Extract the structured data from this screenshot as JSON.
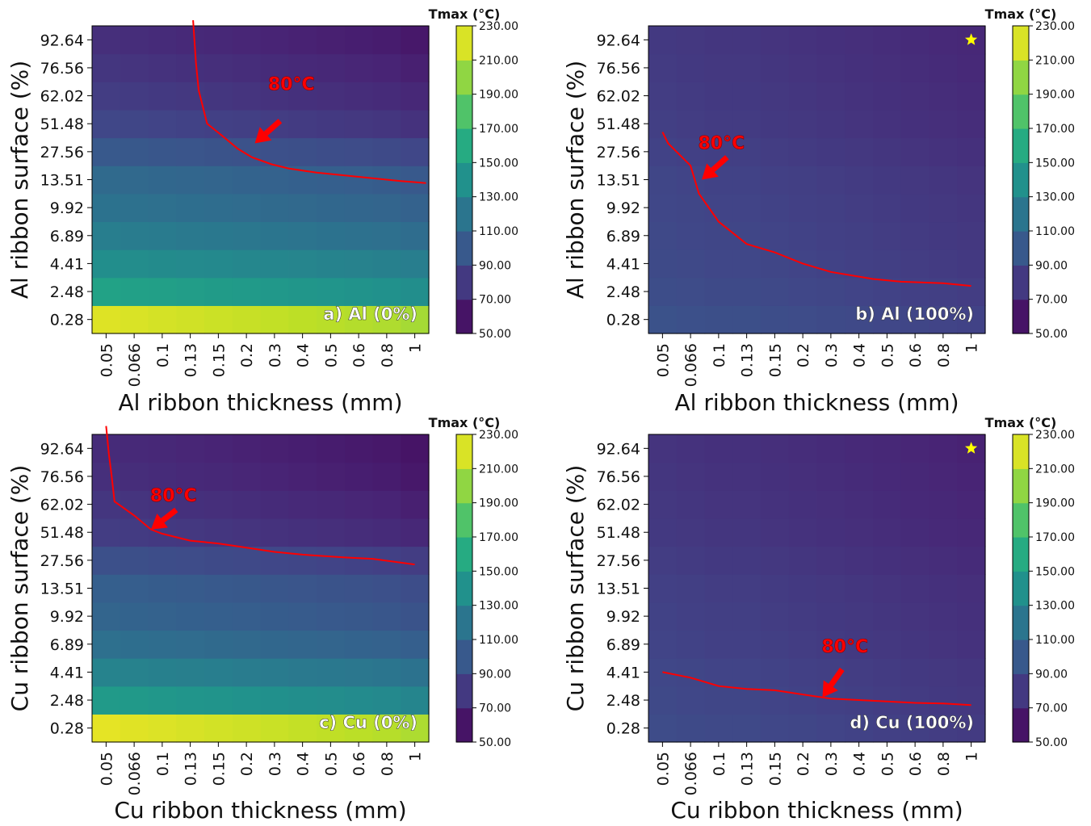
{
  "chart_data": [
    {
      "type": "heatmap",
      "panel_label": "a) Al (0%)",
      "xlabel": "Al ribbon thickness (mm)",
      "ylabel": "Al ribbon surface (%)",
      "x": [
        "0.05",
        "0.066",
        "0.1",
        "0.13",
        "0.15",
        "0.2",
        "0.3",
        "0.4",
        "0.5",
        "0.6",
        "0.8",
        "1"
      ],
      "y": [
        "0.28",
        "2.48",
        "4.41",
        "6.89",
        "9.92",
        "13.51",
        "27.56",
        "51.48",
        "62.02",
        "76.56",
        "92.64"
      ],
      "col_offsets": [
        4,
        3,
        2,
        1,
        0,
        -1,
        -2,
        -3,
        -4,
        -5,
        -6,
        -8
      ],
      "row_base": [
        216,
        148,
        134,
        122,
        114,
        108,
        96,
        84,
        78,
        74,
        70
      ],
      "contour_label": "80°C",
      "contour": [
        [
          3.1,
          10.7
        ],
        [
          3.2,
          9.2
        ],
        [
          3.3,
          8.2
        ],
        [
          3.6,
          7.0
        ],
        [
          4.1,
          6.6
        ],
        [
          4.7,
          6.1
        ],
        [
          5.2,
          5.8
        ],
        [
          5.9,
          5.55
        ],
        [
          6.5,
          5.4
        ],
        [
          7.5,
          5.25
        ],
        [
          8.5,
          5.15
        ],
        [
          9.5,
          5.05
        ],
        [
          10.5,
          4.95
        ],
        [
          11.4,
          4.88
        ]
      ],
      "arrow_label_at": [
        6.6,
        8.2
      ],
      "arrow_tail": [
        6.2,
        7.1
      ],
      "arrow_head": [
        5.3,
        6.3
      ],
      "clim": [
        50,
        230
      ],
      "colorbar_title": "Tmax (°C)",
      "colorbar_ticks": [
        "230.00",
        "210.00",
        "190.00",
        "170.00",
        "150.00",
        "130.00",
        "110.00",
        "90.00",
        "70.00",
        "50.00"
      ],
      "star": false
    },
    {
      "type": "heatmap",
      "panel_label": "b) Al (100%)",
      "xlabel": "Al ribbon thickness (mm)",
      "ylabel": "Al ribbon surface (%)",
      "x": [
        "0.05",
        "0.066",
        "0.1",
        "0.13",
        "0.15",
        "0.2",
        "0.3",
        "0.4",
        "0.5",
        "0.6",
        "0.8",
        "1"
      ],
      "y": [
        "0.28",
        "2.48",
        "4.41",
        "6.89",
        "9.92",
        "13.51",
        "27.56",
        "51.48",
        "62.02",
        "76.56",
        "92.64"
      ],
      "col_offsets": [
        3,
        2,
        1,
        1,
        0,
        -1,
        -2,
        -3,
        -4,
        -5,
        -6,
        -7
      ],
      "row_base": [
        92,
        89,
        87,
        86,
        85,
        84,
        82,
        80,
        79,
        78,
        77
      ],
      "contour_label": "80°C",
      "contour": [
        [
          0.0,
          6.7
        ],
        [
          0.2,
          6.3
        ],
        [
          0.6,
          5.9
        ],
        [
          1.0,
          5.5
        ],
        [
          1.3,
          4.5
        ],
        [
          2.0,
          3.5
        ],
        [
          3.0,
          2.7
        ],
        [
          4.0,
          2.4
        ],
        [
          5.0,
          2.0
        ],
        [
          6.0,
          1.7
        ],
        [
          7.5,
          1.45
        ],
        [
          8.5,
          1.35
        ],
        [
          10.0,
          1.3
        ],
        [
          11.0,
          1.2
        ]
      ],
      "arrow_label_at": [
        2.1,
        6.1
      ],
      "arrow_tail": [
        2.3,
        5.8
      ],
      "arrow_head": [
        1.4,
        5.0
      ],
      "clim": [
        50,
        230
      ],
      "colorbar_title": "Tmax (°C)",
      "colorbar_ticks": [
        "230.00",
        "210.00",
        "190.00",
        "170.00",
        "150.00",
        "130.00",
        "110.00",
        "90.00",
        "70.00",
        "50.00"
      ],
      "star": true
    },
    {
      "type": "heatmap",
      "panel_label": "c) Cu (0%)",
      "xlabel": "Cu ribbon thickness (mm)",
      "ylabel": "Cu ribbon surface (%)",
      "x": [
        "0.05",
        "0.066",
        "0.1",
        "0.13",
        "0.15",
        "0.2",
        "0.3",
        "0.4",
        "0.5",
        "0.6",
        "0.8",
        "1"
      ],
      "y": [
        "0.28",
        "2.48",
        "4.41",
        "6.89",
        "9.92",
        "13.51",
        "27.56",
        "51.48",
        "62.02",
        "76.56",
        "92.64"
      ],
      "col_offsets": [
        4,
        3,
        2,
        1,
        0,
        -1,
        -2,
        -3,
        -4,
        -5,
        -6,
        -8
      ],
      "row_base": [
        218,
        142,
        126,
        112,
        104,
        100,
        90,
        78,
        74,
        70,
        68
      ],
      "contour_label": "80°C",
      "contour": [
        [
          0.0,
          10.8
        ],
        [
          0.1,
          9.8
        ],
        [
          0.2,
          9.0
        ],
        [
          0.3,
          8.1
        ],
        [
          1.0,
          7.6
        ],
        [
          1.6,
          7.1
        ],
        [
          2.0,
          6.95
        ],
        [
          3.0,
          6.7
        ],
        [
          4.0,
          6.6
        ],
        [
          5.0,
          6.45
        ],
        [
          6.0,
          6.3
        ],
        [
          7.0,
          6.2
        ],
        [
          8.5,
          6.1
        ],
        [
          9.5,
          6.05
        ],
        [
          11.0,
          5.85
        ]
      ],
      "arrow_label_at": [
        2.4,
        8.1
      ],
      "arrow_tail": [
        2.5,
        7.8
      ],
      "arrow_head": [
        1.6,
        7.1
      ],
      "clim": [
        50,
        230
      ],
      "colorbar_title": "Tmax (°C)",
      "colorbar_ticks": [
        "230.00",
        "210.00",
        "190.00",
        "170.00",
        "150.00",
        "130.00",
        "110.00",
        "90.00",
        "70.00",
        "50.00"
      ],
      "star": false
    },
    {
      "type": "heatmap",
      "panel_label": "d) Cu (100%)",
      "xlabel": "Cu ribbon thickness (mm)",
      "ylabel": "Cu ribbon surface (%)",
      "x": [
        "0.05",
        "0.066",
        "0.1",
        "0.13",
        "0.15",
        "0.2",
        "0.3",
        "0.4",
        "0.5",
        "0.6",
        "0.8",
        "1"
      ],
      "y": [
        "0.28",
        "2.48",
        "4.41",
        "6.89",
        "9.92",
        "13.51",
        "27.56",
        "51.48",
        "62.02",
        "76.56",
        "92.64"
      ],
      "col_offsets": [
        3,
        2,
        1,
        1,
        0,
        -1,
        -2,
        -3,
        -4,
        -5,
        -6,
        -7
      ],
      "row_base": [
        88,
        86,
        85,
        83,
        82,
        81,
        79,
        77,
        76,
        75,
        74
      ],
      "contour_label": "80°C",
      "contour": [
        [
          0.0,
          2.0
        ],
        [
          1.0,
          1.8
        ],
        [
          2.0,
          1.5
        ],
        [
          3.0,
          1.4
        ],
        [
          4.0,
          1.35
        ],
        [
          5.0,
          1.2
        ],
        [
          6.0,
          1.05
        ],
        [
          7.0,
          1.0
        ],
        [
          8.0,
          0.95
        ],
        [
          9.0,
          0.9
        ],
        [
          10.0,
          0.88
        ],
        [
          11.0,
          0.82
        ]
      ],
      "arrow_label_at": [
        6.5,
        2.7
      ],
      "arrow_tail": [
        6.4,
        2.1
      ],
      "arrow_head": [
        5.7,
        1.1
      ],
      "clim": [
        50,
        230
      ],
      "colorbar_title": "Tmax (°C)",
      "colorbar_ticks": [
        "230.00",
        "210.00",
        "190.00",
        "170.00",
        "150.00",
        "130.00",
        "110.00",
        "90.00",
        "70.00",
        "50.00"
      ],
      "star": true
    }
  ]
}
